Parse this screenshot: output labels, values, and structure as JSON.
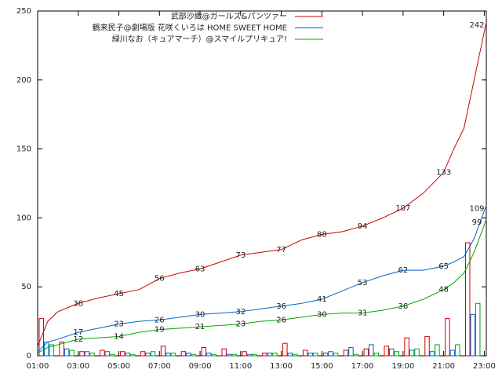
{
  "chart_data": {
    "type": "line",
    "x": [
      1,
      1.5,
      2,
      3,
      4,
      5,
      6,
      7,
      8,
      9,
      10,
      11,
      12,
      13,
      14,
      15,
      16,
      17,
      18,
      19,
      20,
      21,
      21.5,
      22,
      22.5,
      23.1
    ],
    "xlim": [
      1,
      23.1
    ],
    "xticks": [
      {
        "value": 1,
        "label": "01:00"
      },
      {
        "value": 3,
        "label": "03:00"
      },
      {
        "value": 5,
        "label": "05:00"
      },
      {
        "value": 7,
        "label": "07:00"
      },
      {
        "value": 9,
        "label": "09:00"
      },
      {
        "value": 11,
        "label": "11:00"
      },
      {
        "value": 13,
        "label": "13:00"
      },
      {
        "value": 15,
        "label": "15:00"
      },
      {
        "value": 17,
        "label": "17:00"
      },
      {
        "value": 19,
        "label": "19:00"
      },
      {
        "value": 21,
        "label": "21:00"
      },
      {
        "value": 23,
        "label": "23:00"
      }
    ],
    "ylim": [
      0,
      250
    ],
    "yticks": [
      0,
      50,
      100,
      150,
      200,
      250
    ],
    "legend": "top-right",
    "bar_hours": [
      1,
      2,
      3,
      4,
      5,
      6,
      7,
      8,
      9,
      10,
      11,
      12,
      13,
      14,
      15,
      16,
      17,
      18,
      19,
      20,
      21,
      22
    ],
    "series": [
      {
        "name": "武部沙織@ガールズ&パンツァー",
        "color": "#cc0000",
        "values": [
          7,
          25,
          32,
          38,
          42,
          45,
          48,
          56,
          60,
          63,
          68,
          73,
          75,
          77,
          84,
          88,
          90,
          94,
          100,
          107,
          118,
          133,
          150,
          165,
          200,
          242
        ],
        "labels": [
          {
            "x": 3,
            "value": 38
          },
          {
            "x": 5,
            "value": 45
          },
          {
            "x": 7,
            "value": 56
          },
          {
            "x": 9,
            "value": 63
          },
          {
            "x": 11,
            "value": 73
          },
          {
            "x": 13,
            "value": 77
          },
          {
            "x": 15,
            "value": 88
          },
          {
            "x": 17,
            "value": 94
          },
          {
            "x": 19,
            "value": 107
          },
          {
            "x": 21,
            "value": 133
          },
          {
            "x": 23.1,
            "value": 242
          }
        ],
        "counts": [
          27,
          10,
          3,
          4,
          3,
          3,
          7,
          3,
          6,
          5,
          3,
          2,
          9,
          4,
          2,
          4,
          5,
          7,
          13,
          14,
          27,
          82
        ]
      },
      {
        "name": "鶴来民子@劇場版 花咲くいろは HOME SWEET HOME",
        "color": "#0066cc",
        "values": [
          3,
          10,
          12,
          17,
          20,
          23,
          25,
          26,
          28,
          30,
          31,
          32,
          34,
          36,
          38,
          41,
          47,
          53,
          58,
          62,
          62,
          65,
          68,
          72,
          85,
          109
        ],
        "labels": [
          {
            "x": 3,
            "value": 17
          },
          {
            "x": 5,
            "value": 23
          },
          {
            "x": 7,
            "value": 26
          },
          {
            "x": 9,
            "value": 30
          },
          {
            "x": 11,
            "value": 32
          },
          {
            "x": 13,
            "value": 36
          },
          {
            "x": 15,
            "value": 41
          },
          {
            "x": 17,
            "value": 53
          },
          {
            "x": 19,
            "value": 62
          },
          {
            "x": 21,
            "value": 65
          },
          {
            "x": 23.1,
            "value": 109
          }
        ],
        "counts": [
          10,
          5,
          3,
          3,
          2,
          2,
          2,
          2,
          2,
          1,
          1,
          2,
          2,
          2,
          3,
          6,
          8,
          5,
          4,
          3,
          4,
          30
        ]
      },
      {
        "name": "緑川なお（キュアマーチ）@スマイルプリキュア!",
        "color": "#00aa00",
        "values": [
          2,
          6,
          8,
          12,
          13,
          14,
          17,
          19,
          20,
          21,
          22,
          23,
          25,
          26,
          28,
          30,
          31,
          31,
          33,
          36,
          41,
          48,
          53,
          60,
          75,
          99
        ],
        "labels": [
          {
            "x": 3,
            "value": 12
          },
          {
            "x": 5,
            "value": 14
          },
          {
            "x": 7,
            "value": 19
          },
          {
            "x": 9,
            "value": 21
          },
          {
            "x": 11,
            "value": 23
          },
          {
            "x": 13,
            "value": 26
          },
          {
            "x": 15,
            "value": 30
          },
          {
            "x": 17,
            "value": 31
          },
          {
            "x": 19,
            "value": 36
          },
          {
            "x": 21,
            "value": 48
          },
          {
            "x": 23.1,
            "value": 99
          }
        ],
        "counts": [
          8,
          4,
          2,
          1,
          1,
          3,
          2,
          1,
          1,
          1,
          1,
          2,
          1,
          2,
          2,
          1,
          2,
          3,
          5,
          8,
          8,
          38
        ]
      }
    ]
  }
}
